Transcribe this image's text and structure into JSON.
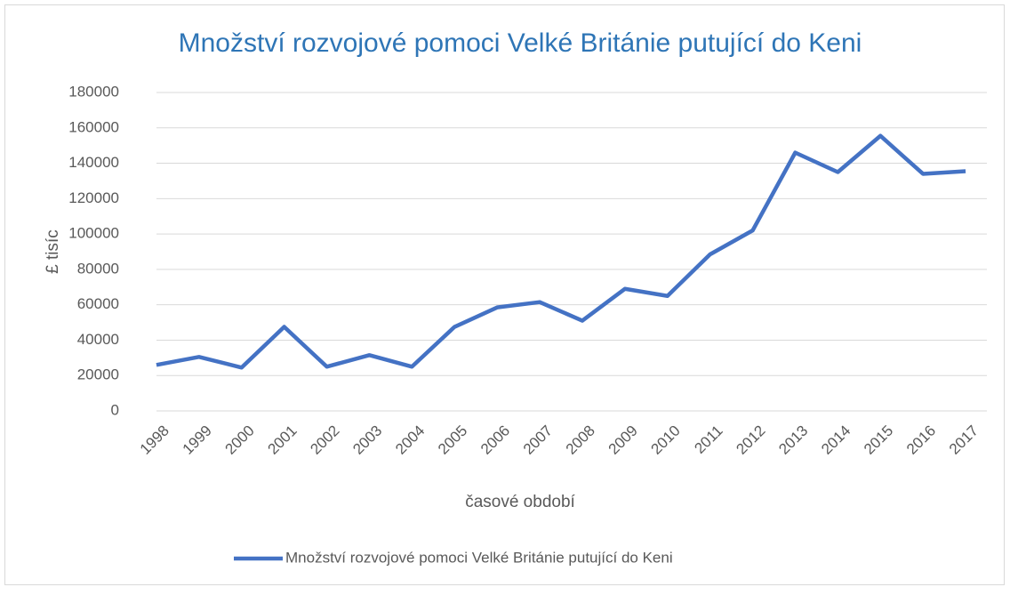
{
  "chart_data": {
    "type": "line",
    "title": "Množství rozvojové pomoci Velké Británie putující do Keni",
    "x_label": "časové období",
    "y_label": "£ tisíc",
    "categories": [
      "1998",
      "1999",
      "2000",
      "2001",
      "2002",
      "2003",
      "2004",
      "2005",
      "2006",
      "2007",
      "2008",
      "2009",
      "2010",
      "2011",
      "2012",
      "2013",
      "2014",
      "2015",
      "2016",
      "2017"
    ],
    "series": [
      {
        "name": "Množství rozvojové pomoci Velké Británie putující do Keni",
        "color": "#4472c4",
        "values": [
          26000,
          30500,
          24500,
          47500,
          25000,
          31500,
          25000,
          47500,
          58500,
          61500,
          51000,
          69000,
          65000,
          88500,
          102000,
          146000,
          135000,
          155500,
          134000,
          135500
        ]
      }
    ],
    "ylim": [
      0,
      180000
    ],
    "yticks": [
      0,
      20000,
      40000,
      60000,
      80000,
      100000,
      120000,
      140000,
      160000,
      180000
    ],
    "grid": true,
    "legend": "bottom"
  }
}
